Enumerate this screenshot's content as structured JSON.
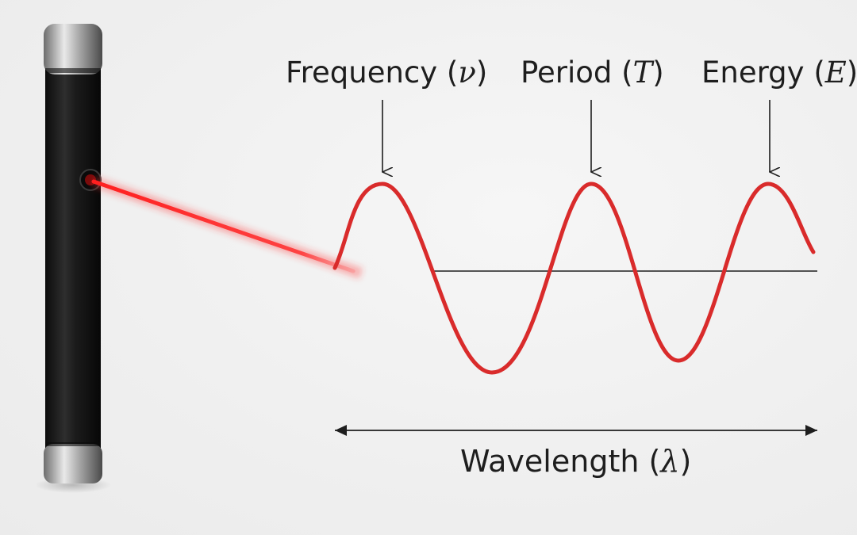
{
  "labels": {
    "frequency": {
      "text": "Frequency",
      "symbol": "ν"
    },
    "period": {
      "text": "Period",
      "symbol": "T"
    },
    "energy": {
      "text": "Energy",
      "symbol": "E"
    },
    "wavelength": {
      "text": "Wavelength",
      "symbol": "λ"
    }
  },
  "colors": {
    "wave": "#d92b2b",
    "laser_beam": "#ff2a2a",
    "pointer_body": "#1c1c1c",
    "pointer_cap": "#b8b8b8",
    "text": "#1e1e1e",
    "background": "#efefef"
  }
}
